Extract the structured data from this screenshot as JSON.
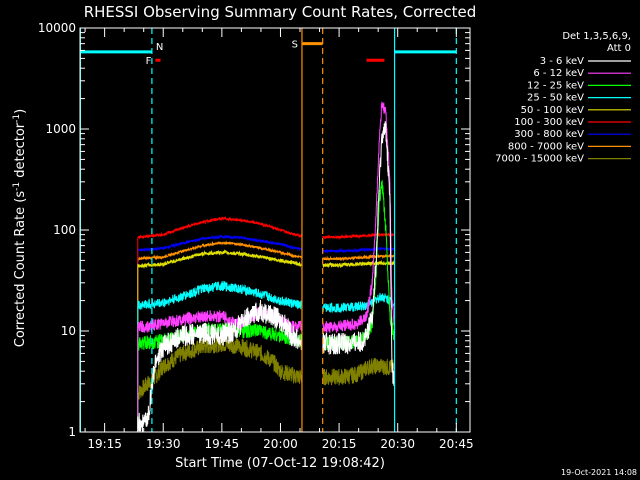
{
  "chart_data": {
    "type": "line",
    "title": "RHESSI Observing Summary Count Rates, Corrected",
    "xlabel": "Start Time (07-Oct-12 19:08:42)",
    "ylabel": "Corrected Count Rate (s",
    "ylabel_sup": "-1",
    "ylabel_mid": " detector",
    "ylabel_sup2": "-1",
    "ylabel_end": ")",
    "xlim_min": [
      1148.7,
      1248.5
    ],
    "ylim": [
      1,
      10000
    ],
    "yscale": "log",
    "yticks": [
      1,
      10,
      100,
      1000,
      10000
    ],
    "ytick_labels": [
      "1",
      "10",
      "100",
      "1000",
      "10000"
    ],
    "xticks_min": [
      1155,
      1170,
      1185,
      1200,
      1215,
      1230,
      1245
    ],
    "xtick_labels": [
      "19:15",
      "19:30",
      "19:45",
      "20:00",
      "20:15",
      "20:30",
      "20:45"
    ],
    "legend": {
      "placement": "right",
      "header": [
        "Det 1,3,5,6,9,",
        "Att 0"
      ]
    },
    "gap_min": [
      1205.5,
      1210.8
    ],
    "data_start_min": [
      1163.3
    ],
    "data_end_min": [
      1229.2
    ],
    "series": [
      {
        "name": "3 - 6 keV",
        "color": "#ffffff",
        "x": [
          1163.5,
          1166,
          1168,
          1170,
          1175,
          1180,
          1185,
          1188,
          1190,
          1192,
          1195,
          1198,
          1201,
          1203,
          1204.8,
          1211,
          1215,
          1218,
          1220,
          1222,
          1223.5,
          1224.5,
          1225.3,
          1226,
          1227,
          1228,
          1228.5,
          1229.2
        ],
        "y": [
          1.2,
          1.3,
          5,
          7,
          9,
          9.5,
          9,
          10,
          12,
          14,
          16,
          14,
          12,
          9,
          8,
          7.5,
          7.5,
          7.6,
          7.8,
          8.5,
          15,
          50,
          300,
          900,
          1000,
          200,
          5,
          2.6
        ]
      },
      {
        "name": "6 - 12 keV",
        "color": "#ff40ff",
        "x": [
          1163.5,
          1166,
          1170,
          1175,
          1180,
          1185,
          1188,
          1190,
          1192,
          1195,
          1198,
          1201,
          1203,
          1204.8,
          1211,
          1215,
          1218,
          1220,
          1222,
          1223.5,
          1224.5,
          1225.3,
          1226,
          1227,
          1228,
          1228.5,
          1229.2
        ],
        "y": [
          11,
          11,
          12,
          13,
          14,
          14,
          12,
          12,
          13,
          16,
          14,
          12,
          11,
          11,
          11,
          11,
          11.5,
          12,
          14,
          30,
          150,
          800,
          1800,
          1400,
          300,
          20,
          11
        ]
      },
      {
        "name": "12 - 25 keV",
        "color": "#00ff00",
        "x": [
          1163.5,
          1170,
          1175,
          1180,
          1185,
          1190,
          1195,
          1200,
          1204.8,
          1211,
          1215,
          1220,
          1222,
          1223.5,
          1224.5,
          1225.3,
          1226,
          1227,
          1228,
          1229.2
        ],
        "y": [
          7.5,
          8,
          9,
          10,
          10.5,
          10,
          10,
          9,
          8,
          7.5,
          7.6,
          7.8,
          9,
          12,
          40,
          200,
          280,
          100,
          15,
          8
        ]
      },
      {
        "name": "25 - 50 keV",
        "color": "#00ffff",
        "x": [
          1163.5,
          1170,
          1175,
          1180,
          1185,
          1190,
          1195,
          1200,
          1204.8,
          1211,
          1215,
          1220,
          1222,
          1224,
          1226,
          1228,
          1229.2
        ],
        "y": [
          18,
          19,
          22,
          26,
          28,
          26,
          23,
          20,
          18,
          17,
          17,
          17.5,
          18,
          20,
          22,
          20,
          18
        ]
      },
      {
        "name": "50 - 100 keV",
        "color": "#e0e000",
        "x": [
          1163.5,
          1170,
          1175,
          1180,
          1185,
          1190,
          1195,
          1200,
          1204.8,
          1211,
          1215,
          1220,
          1225,
          1229.2
        ],
        "y": [
          44,
          46,
          52,
          58,
          60,
          58,
          54,
          50,
          46,
          45,
          45,
          46,
          47,
          47
        ]
      },
      {
        "name": "100 - 300 keV",
        "color": "#ff0000",
        "x": [
          1163.5,
          1170,
          1175,
          1180,
          1185,
          1190,
          1195,
          1200,
          1204.8,
          1211,
          1215,
          1220,
          1225,
          1229.2
        ],
        "y": [
          85,
          90,
          105,
          120,
          130,
          125,
          115,
          100,
          88,
          85,
          85,
          87,
          90,
          90
        ]
      },
      {
        "name": "300 - 800 keV",
        "color": "#0000ff",
        "x": [
          1163.5,
          1170,
          1175,
          1180,
          1185,
          1190,
          1195,
          1200,
          1204.8,
          1211,
          1215,
          1220,
          1225,
          1229.2
        ],
        "y": [
          63,
          66,
          74,
          82,
          86,
          84,
          78,
          72,
          65,
          62,
          62,
          63,
          65,
          65
        ]
      },
      {
        "name": "800 - 7000 keV",
        "color": "#ff9000",
        "x": [
          1163.5,
          1170,
          1175,
          1180,
          1185,
          1190,
          1195,
          1200,
          1204.8,
          1211,
          1215,
          1220,
          1225,
          1229.2
        ],
        "y": [
          52,
          54,
          62,
          70,
          75,
          72,
          66,
          60,
          54,
          52,
          52,
          53,
          55,
          55
        ]
      },
      {
        "name": "7000 - 15000 keV",
        "color": "#808000",
        "x": [
          1163.5,
          1166,
          1168,
          1170,
          1175,
          1180,
          1185,
          1190,
          1195,
          1198,
          1200,
          1204.8,
          1211,
          1215,
          1218,
          1220,
          1223,
          1225,
          1229.2
        ],
        "y": [
          2.4,
          3,
          3.5,
          4.5,
          6,
          7,
          7.5,
          7,
          6,
          5,
          4,
          3.5,
          3.5,
          3.5,
          3.6,
          3.8,
          4.5,
          4.5,
          4.3
        ]
      }
    ],
    "segments": [
      {
        "label": "",
        "color": "#00ffff",
        "y": 5800,
        "x": [
          1148.7,
          1167.1
        ]
      },
      {
        "label": "",
        "color": "#00ffff",
        "y": 5800,
        "x": [
          1229.2,
          1245.0
        ]
      },
      {
        "label": "F",
        "color": "#ff0000",
        "y": 4800,
        "x": [
          1168.0,
          1169.3
        ]
      },
      {
        "label": "",
        "color": "#ff0000",
        "y": 4800,
        "x": [
          1222.0,
          1226.6
        ]
      },
      {
        "label": "S",
        "color": "#ff9000",
        "y": 7000,
        "x": [
          1205.5,
          1210.8
        ]
      }
    ],
    "markers": [
      {
        "label": "",
        "color": "#00ffff",
        "style": "solid",
        "x": 1148.8
      },
      {
        "label": "N",
        "color": "#00ffff",
        "style": "dashed",
        "x": 1167.1
      },
      {
        "label": "",
        "color": "#ff9000",
        "style": "solid",
        "x": 1205.5
      },
      {
        "label": "",
        "color": "#ff9000",
        "style": "dashed",
        "x": 1210.8
      },
      {
        "label": "",
        "color": "#00ffff",
        "style": "solid",
        "x": 1229.2
      },
      {
        "label": "",
        "color": "#00ffff",
        "style": "dashed",
        "x": 1245.0
      }
    ]
  },
  "footer": {
    "timestamp": "19-Oct-2021 14:08"
  }
}
